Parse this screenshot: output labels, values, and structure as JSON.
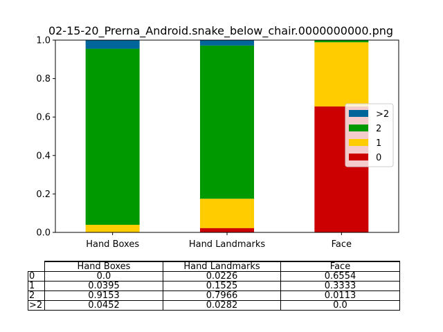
{
  "chart_data": {
    "type": "bar",
    "stacked": true,
    "title": "02-15-20_Prerna_Android.snake_below_chair.0000000000.png",
    "categories": [
      "Hand Boxes",
      "Hand Landmarks",
      "Face"
    ],
    "ylim": [
      0,
      1.0
    ],
    "yticks": [
      "0.0",
      "0.2",
      "0.4",
      "0.6",
      "0.8",
      "1.0"
    ],
    "grid": false,
    "legend_placement": "center-right",
    "series": [
      {
        "name": "0",
        "color": "#cc0000",
        "values": [
          0.0,
          0.0226,
          0.6554
        ]
      },
      {
        "name": "1",
        "color": "#ffcc00",
        "values": [
          0.0395,
          0.1525,
          0.3333
        ]
      },
      {
        "name": "2",
        "color": "#009900",
        "values": [
          0.9153,
          0.7966,
          0.0113
        ]
      },
      {
        "name": ">2",
        "color": "#006699",
        "values": [
          0.0452,
          0.0282,
          0.0
        ]
      }
    ],
    "legend_order": [
      ">2",
      "2",
      "1",
      "0"
    ],
    "table": {
      "columns": [
        "Hand Boxes",
        "Hand Landmarks",
        "Face"
      ],
      "rows": [
        {
          "label": "0",
          "cells": [
            "0.0",
            "0.0226",
            "0.6554"
          ]
        },
        {
          "label": "1",
          "cells": [
            "0.0395",
            "0.1525",
            "0.3333"
          ]
        },
        {
          "label": "2",
          "cells": [
            "0.9153",
            "0.7966",
            "0.0113"
          ]
        },
        {
          "label": ">2",
          "cells": [
            "0.0452",
            "0.0282",
            "0.0"
          ]
        }
      ]
    }
  }
}
